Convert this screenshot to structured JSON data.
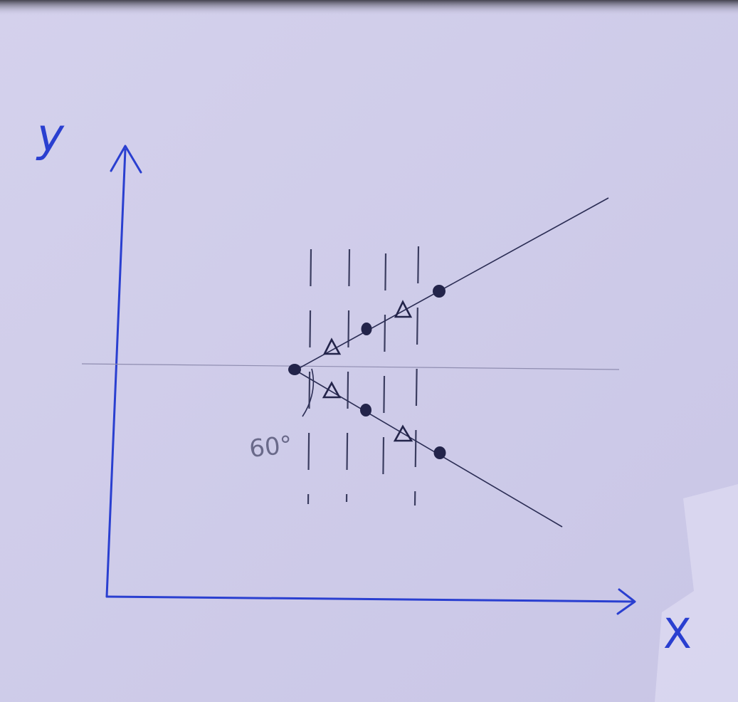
{
  "axes": {
    "x_label": "X",
    "y_label": "y"
  },
  "angle_label": "60°",
  "colors": {
    "paper": "#cfcce9",
    "ink_blue": "#2a3fd0",
    "pencil": "#2c2e55",
    "guide": "#8f8db0"
  },
  "markers": {
    "vertex": "dot",
    "upper_branch": [
      "triangle",
      "dot",
      "triangle",
      "dot"
    ],
    "lower_branch": [
      "triangle",
      "dot",
      "triangle",
      "dot"
    ]
  }
}
